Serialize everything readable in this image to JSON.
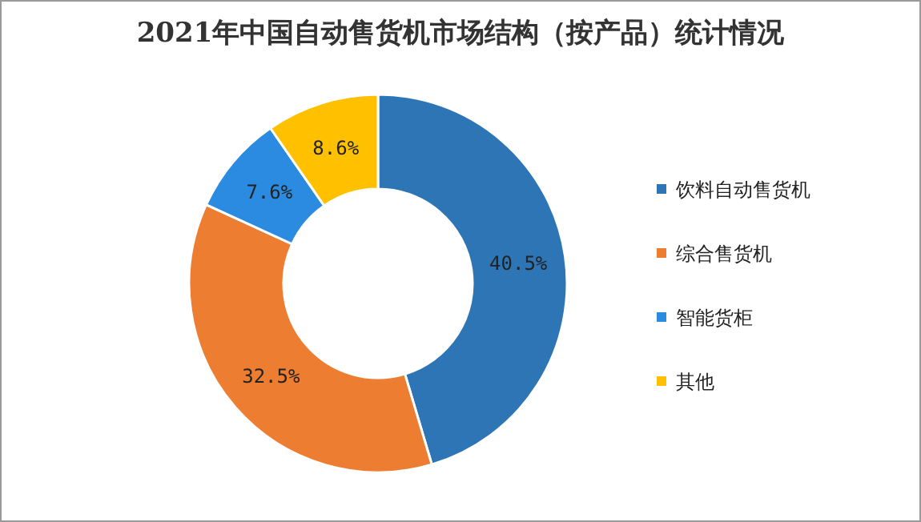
{
  "chart_data": {
    "type": "donut",
    "title": "2021年中国自动售货机市场结构（按产品）统计情况",
    "categories": [
      "饮料自动售货机",
      "综合售货机",
      "智能货柜",
      "其他"
    ],
    "values": [
      40.5,
      32.5,
      7.6,
      8.6
    ],
    "colors": [
      "#2e75b6",
      "#ed7d31",
      "#2a8be0",
      "#ffc000"
    ],
    "value_labels": [
      "40.5%",
      "32.5%",
      "7.6%",
      "8.6%"
    ],
    "legend": "right"
  }
}
